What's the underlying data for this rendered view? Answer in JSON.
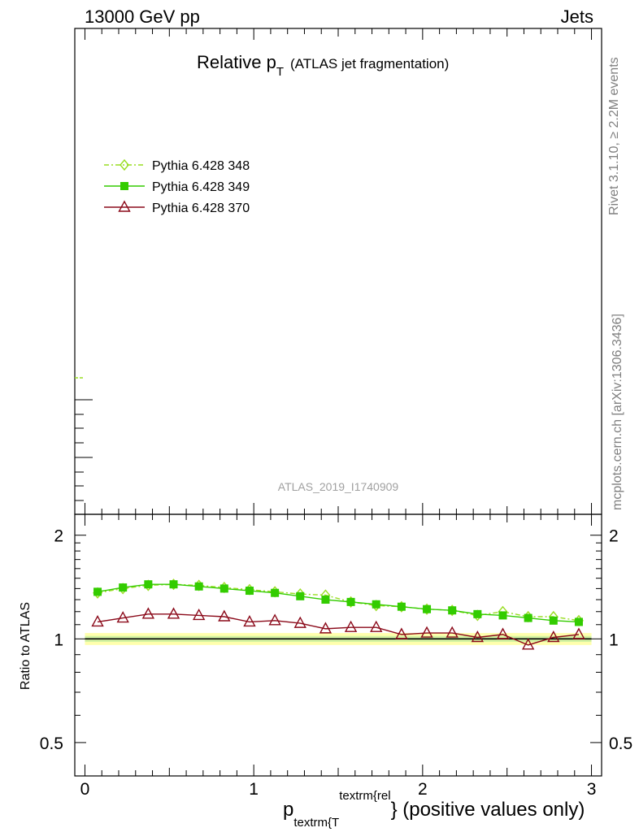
{
  "header": {
    "left": "13000 GeV pp",
    "right": "Jets"
  },
  "title": {
    "main": "Relative p",
    "sub": "T",
    "paren": "(ATLAS jet fragmentation)"
  },
  "watermark": "ATLAS_2019_I1740909",
  "side_labels": {
    "rivet": "Rivet 3.1.10, ≥ 2.2M events",
    "mcplots": "mcplots.cern.ch [arXiv:1306.3436]"
  },
  "legend": [
    {
      "label": "Pythia 6.428 348",
      "color": "#99dd22",
      "marker": "diamond-open",
      "style": "dashdot"
    },
    {
      "label": "Pythia 6.428 349",
      "color": "#33cc00",
      "marker": "circle-filled",
      "style": "solid"
    },
    {
      "label": "Pythia 6.428 370",
      "color": "#8b0a1a",
      "marker": "triangle-open",
      "style": "solid"
    }
  ],
  "xaxis": {
    "title_main": "p",
    "title_sub": "textrm{T",
    "title_sup": "textrm{rel",
    "title_suffix": "} (positive values only)",
    "tick_labels": [
      "0",
      "1",
      "2",
      "3"
    ]
  },
  "ratio_axis": {
    "label": "Ratio to ATLAS",
    "tick_labels": [
      "0.5",
      "1",
      "2"
    ]
  },
  "chart_data": {
    "type": "line",
    "panel": "ratio",
    "x": [
      0.075,
      0.225,
      0.375,
      0.525,
      0.675,
      0.825,
      0.975,
      1.125,
      1.275,
      1.425,
      1.575,
      1.725,
      1.875,
      2.025,
      2.175,
      2.325,
      2.475,
      2.625,
      2.775,
      2.925
    ],
    "xlim": [
      -0.06,
      3.06
    ],
    "ylim": [
      0.4,
      2.3
    ],
    "yscale": "log",
    "reference": 1.0,
    "band_inner": [
      0.98,
      1.02
    ],
    "band_outer": [
      0.96,
      1.04
    ],
    "series": [
      {
        "name": "Pythia 6.428 348",
        "color": "#99dd22",
        "marker": "diamond-open",
        "values": [
          1.36,
          1.4,
          1.43,
          1.44,
          1.43,
          1.41,
          1.39,
          1.37,
          1.35,
          1.34,
          1.28,
          1.25,
          1.24,
          1.22,
          1.21,
          1.17,
          1.2,
          1.16,
          1.16,
          1.13
        ]
      },
      {
        "name": "Pythia 6.428 349",
        "color": "#33cc00",
        "marker": "circle-filled",
        "values": [
          1.37,
          1.41,
          1.44,
          1.44,
          1.42,
          1.4,
          1.38,
          1.36,
          1.33,
          1.3,
          1.28,
          1.26,
          1.24,
          1.22,
          1.21,
          1.18,
          1.17,
          1.15,
          1.13,
          1.12
        ]
      },
      {
        "name": "Pythia 6.428 370",
        "color": "#8b0a1a",
        "marker": "triangle-open",
        "values": [
          1.12,
          1.15,
          1.18,
          1.18,
          1.17,
          1.16,
          1.12,
          1.13,
          1.11,
          1.07,
          1.08,
          1.08,
          1.03,
          1.04,
          1.04,
          1.01,
          1.03,
          0.96,
          1.01,
          1.03
        ]
      }
    ]
  }
}
